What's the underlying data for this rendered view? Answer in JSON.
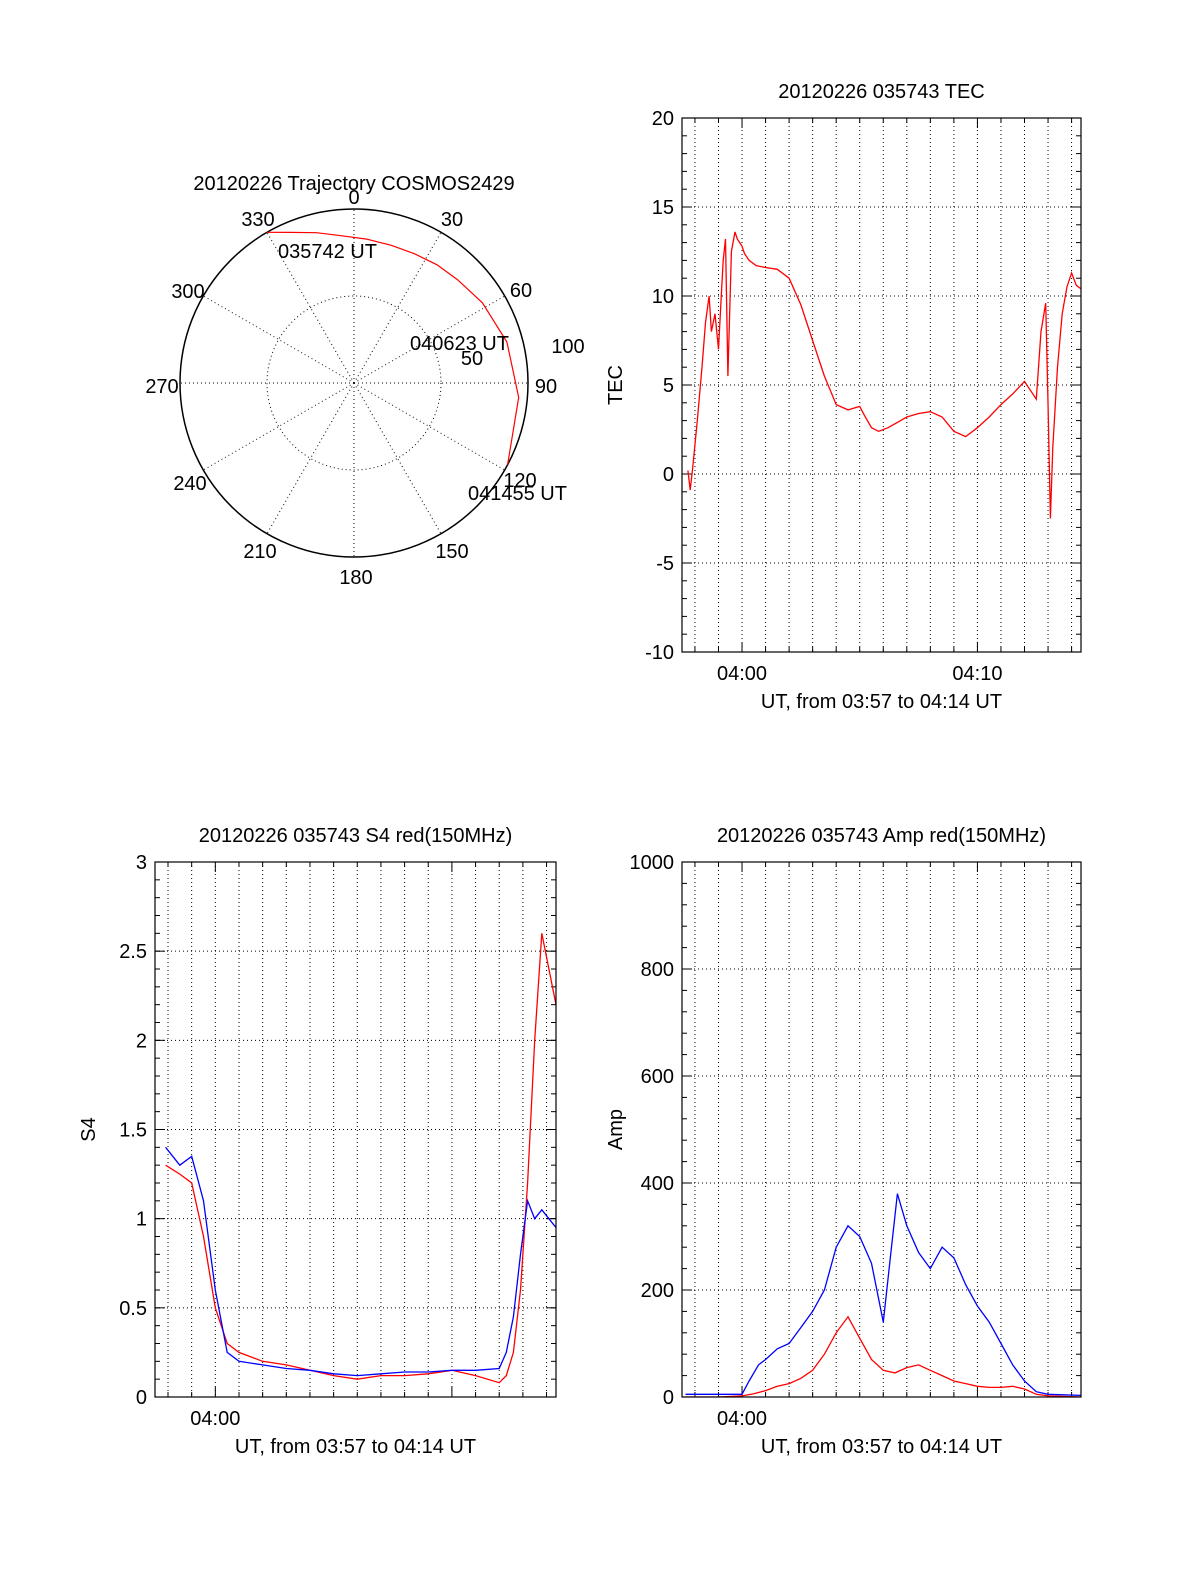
{
  "colors": {
    "red": "#ff0000",
    "blue": "#0000ff",
    "axis": "#000000"
  },
  "chart_data": [
    {
      "id": "trajectory",
      "type": "polar",
      "title": "20120226 Trajectory COSMOS2429",
      "angle_labels": [
        "0",
        "30",
        "60",
        "90",
        "120",
        "150",
        "180",
        "210",
        "240",
        "270",
        "300",
        "330"
      ],
      "radius_labels": [
        "50",
        "100"
      ],
      "rlim": [
        0,
        100
      ],
      "grid": true,
      "track": {
        "azimuth": [
          330,
          337,
          346,
          355,
          5,
          15,
          25,
          35,
          45,
          58,
          75,
          95,
          118
        ],
        "zenith": [
          100,
          94,
          89,
          85,
          83,
          82,
          82,
          83,
          84,
          87,
          91,
          95,
          100
        ]
      },
      "annotations": [
        "035742 UT",
        "040623 UT",
        "041455 UT"
      ]
    },
    {
      "id": "tec",
      "type": "line",
      "title": "20120226 035743 TEC",
      "xlabel": "UT, from 03:57 to 04:14 UT",
      "ylabel": "TEC",
      "x_tick_labels": [
        "04:00",
        "04:10"
      ],
      "y_tick_labels": [
        "20",
        "15",
        "10",
        "5",
        "0",
        "-5",
        "-10"
      ],
      "xlim": [
        -2.55,
        14.4
      ],
      "ylim": [
        -10,
        20
      ],
      "grid": true,
      "series": [
        {
          "color": "#ff0000",
          "x": [
            -2.3,
            -2.2,
            -2.1,
            -1.9,
            -1.7,
            -1.55,
            -1.4,
            -1.3,
            -1.15,
            -1.0,
            -0.9,
            -0.8,
            -0.7,
            -0.6,
            -0.45,
            -0.3,
            -0.2,
            -0.1,
            0.0,
            0.1,
            0.3,
            0.6,
            1.0,
            1.5,
            2.0,
            2.5,
            3.0,
            3.5,
            4.0,
            4.5,
            5.0,
            5.2,
            5.5,
            5.8,
            6.2,
            6.6,
            7.0,
            7.5,
            8.0,
            8.5,
            9.0,
            9.5,
            10.0,
            10.5,
            11.0,
            11.5,
            12.0,
            12.5,
            12.7,
            12.9,
            13.0,
            13.1,
            13.2,
            13.4,
            13.6,
            13.8,
            14.0,
            14.2,
            14.4
          ],
          "y": [
            0.2,
            -0.9,
            0.3,
            3.0,
            6.0,
            8.5,
            10.0,
            8.0,
            9.0,
            7.0,
            9.5,
            12.0,
            13.2,
            5.5,
            12.5,
            13.6,
            13.2,
            13.0,
            12.8,
            12.4,
            12.0,
            11.7,
            11.6,
            11.5,
            11.0,
            9.5,
            7.5,
            5.5,
            3.9,
            3.6,
            3.8,
            3.3,
            2.6,
            2.4,
            2.6,
            2.9,
            3.2,
            3.4,
            3.5,
            3.2,
            2.4,
            2.1,
            2.6,
            3.2,
            3.9,
            4.5,
            5.2,
            4.2,
            8.0,
            9.6,
            4.0,
            -2.5,
            1.5,
            6.0,
            9.0,
            10.5,
            11.3,
            10.6,
            10.4
          ]
        }
      ]
    },
    {
      "id": "s4",
      "type": "line",
      "title": "20120226 035743 S4 red(150MHz)",
      "xlabel": "UT, from 03:57 to 04:14 UT",
      "ylabel": "S4",
      "x_tick_labels": [
        "04:00"
      ],
      "y_tick_labels": [
        "3",
        "2.5",
        "2",
        "1.5",
        "1",
        "0.5",
        "0"
      ],
      "xlim": [
        -2.55,
        14.4
      ],
      "ylim": [
        0,
        3
      ],
      "grid": true,
      "series": [
        {
          "color": "#ff0000",
          "x": [
            -2.1,
            -1.5,
            -1.0,
            -0.5,
            0.0,
            0.5,
            1.0,
            2.0,
            3.0,
            4.0,
            5.0,
            6.0,
            7.0,
            8.0,
            9.0,
            10.0,
            11.0,
            12.0,
            12.3,
            12.6,
            12.9,
            13.2,
            13.5,
            13.8,
            14.1,
            14.4
          ],
          "y": [
            1.3,
            1.25,
            1.2,
            0.9,
            0.5,
            0.3,
            0.25,
            0.2,
            0.18,
            0.15,
            0.12,
            0.1,
            0.12,
            0.12,
            0.13,
            0.15,
            0.12,
            0.08,
            0.12,
            0.25,
            0.6,
            1.2,
            2.0,
            2.6,
            2.4,
            2.2
          ]
        },
        {
          "color": "#0000ff",
          "x": [
            -2.1,
            -1.5,
            -1.0,
            -0.5,
            0.0,
            0.5,
            1.0,
            2.0,
            3.0,
            4.0,
            5.0,
            6.0,
            7.0,
            8.0,
            9.0,
            10.0,
            11.0,
            12.0,
            12.3,
            12.6,
            12.9,
            13.2,
            13.5,
            13.8,
            14.1,
            14.4
          ],
          "y": [
            1.4,
            1.3,
            1.35,
            1.1,
            0.6,
            0.25,
            0.2,
            0.18,
            0.16,
            0.15,
            0.13,
            0.12,
            0.13,
            0.14,
            0.14,
            0.15,
            0.15,
            0.16,
            0.25,
            0.45,
            0.8,
            1.1,
            1.0,
            1.05,
            1.0,
            0.95
          ]
        }
      ]
    },
    {
      "id": "amp",
      "type": "line",
      "title": "20120226 035743 Amp red(150MHz)",
      "xlabel": "UT, from 03:57 to 04:14 UT",
      "ylabel": "Amp",
      "x_tick_labels": [
        "04:00"
      ],
      "y_tick_labels": [
        "1000",
        "800",
        "600",
        "400",
        "200",
        "0"
      ],
      "xlim": [
        -2.55,
        14.4
      ],
      "ylim": [
        0,
        1000
      ],
      "grid": true,
      "series": [
        {
          "color": "#ff0000",
          "x": [
            -2.4,
            -1.0,
            0.0,
            0.5,
            1.0,
            1.5,
            2.0,
            2.5,
            3.0,
            3.5,
            4.0,
            4.5,
            5.0,
            5.5,
            6.0,
            6.5,
            7.0,
            7.5,
            8.0,
            8.5,
            9.0,
            9.5,
            10.0,
            10.5,
            11.0,
            11.5,
            12.0,
            12.5,
            13.0,
            14.4
          ],
          "y": [
            0,
            0,
            2,
            6,
            12,
            20,
            25,
            35,
            50,
            80,
            120,
            150,
            110,
            70,
            50,
            45,
            55,
            60,
            50,
            40,
            30,
            25,
            20,
            18,
            18,
            20,
            15,
            5,
            2,
            0
          ]
        },
        {
          "color": "#0000ff",
          "x": [
            -2.4,
            -1.0,
            0.0,
            0.3,
            0.7,
            1.0,
            1.5,
            2.0,
            2.5,
            3.0,
            3.5,
            4.0,
            4.5,
            5.0,
            5.5,
            6.0,
            6.3,
            6.6,
            7.0,
            7.5,
            8.0,
            8.5,
            9.0,
            9.5,
            10.0,
            10.5,
            11.0,
            11.5,
            12.0,
            12.5,
            13.0,
            14.4
          ],
          "y": [
            5,
            5,
            5,
            30,
            60,
            70,
            90,
            100,
            130,
            160,
            200,
            280,
            320,
            300,
            250,
            140,
            260,
            380,
            320,
            270,
            240,
            280,
            260,
            210,
            170,
            140,
            100,
            60,
            30,
            10,
            5,
            3
          ]
        }
      ]
    }
  ]
}
